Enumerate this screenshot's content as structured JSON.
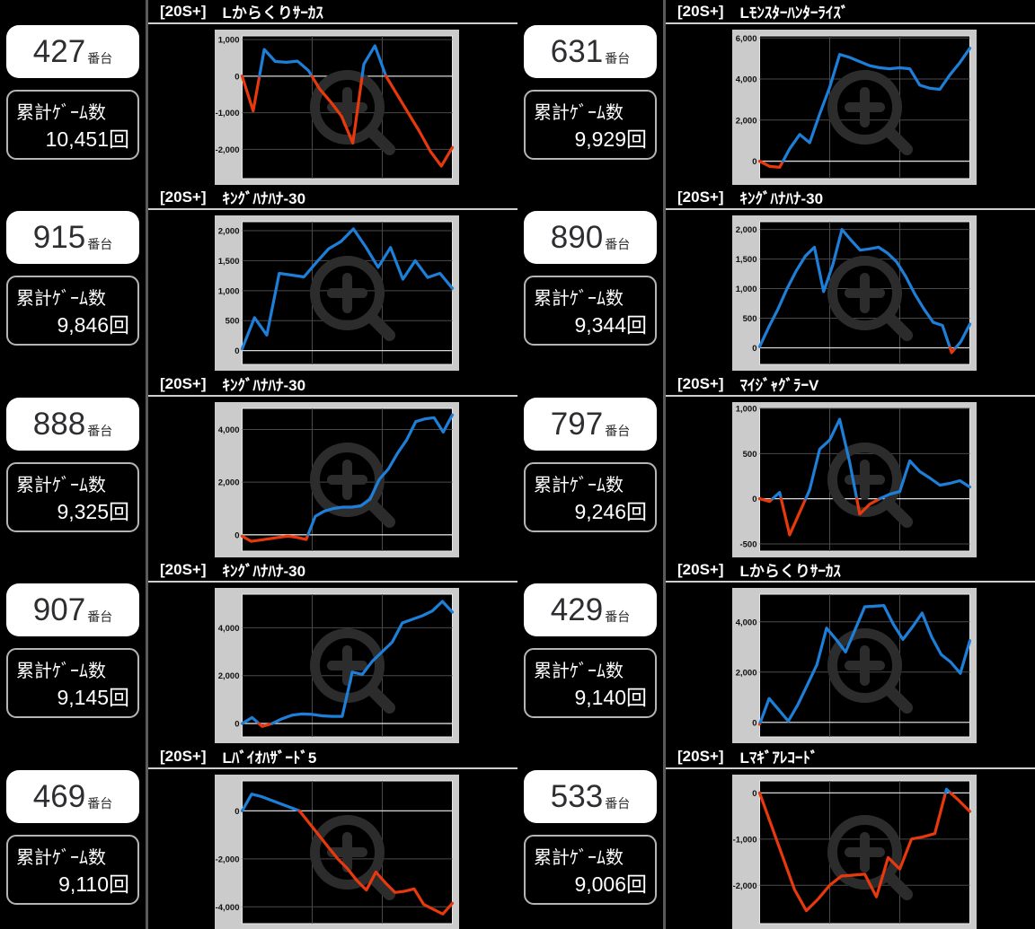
{
  "page": {
    "background": "#000000"
  },
  "labels": {
    "tag": "[20S+]",
    "games_label": "累計ｹﾞｰﾑ数",
    "machine_unit": "番台",
    "games_unit": "回"
  },
  "colors": {
    "line_positive": "#1d7fd8",
    "line_negative": "#e8380d",
    "grid": "#4a4a4a",
    "zero_line": "#d8d8d8",
    "frame": "#cbcbcb",
    "plot_bg": "#000000",
    "plot_border": "#e8e8e8",
    "tick_text": "#111111",
    "watermark": "#2c2c2c",
    "divider": "#5a5a5a",
    "title_underline": "#cfcfcf"
  },
  "icons": {
    "watermark": "magnifier-zoom-in-icon"
  },
  "chart_data": {
    "type": "line",
    "note": "slump graphs; per-machine series in machines[].chart"
  },
  "machines": [
    {
      "number": "427",
      "games": "10,451",
      "title": "Lからくりｻｰｶｽ",
      "chart": {
        "ymax": 1100,
        "ymin": -2800,
        "yticks": [
          {
            "v": 1000,
            "label": "1,000"
          },
          {
            "v": 0,
            "label": "0"
          },
          {
            "v": -1000,
            "label": "-1,000"
          },
          {
            "v": -2000,
            "label": "-2,000"
          }
        ],
        "values": [
          0,
          -950,
          730,
          400,
          380,
          410,
          150,
          -350,
          -700,
          -1100,
          -1830,
          330,
          830,
          0,
          -500,
          -1000,
          -1500,
          -2050,
          -2460,
          -1950
        ]
      }
    },
    {
      "number": "915",
      "games": "9,846",
      "title": "ｷﾝｸﾞﾊﾅﾊﾅ-30",
      "chart": {
        "ymax": 2150,
        "ymin": -230,
        "yticks": [
          {
            "v": 2000,
            "label": "2,000"
          },
          {
            "v": 1500,
            "label": "1,500"
          },
          {
            "v": 1000,
            "label": "1,000"
          },
          {
            "v": 500,
            "label": "500"
          },
          {
            "v": 0,
            "label": "0"
          }
        ],
        "values": [
          30,
          550,
          260,
          1290,
          1260,
          1230,
          1470,
          1700,
          1820,
          2030,
          1730,
          1390,
          1720,
          1190,
          1500,
          1220,
          1290,
          1040
        ]
      }
    },
    {
      "number": "888",
      "games": "9,325",
      "title": "ｷﾝｸﾞﾊﾅﾊﾅ-30",
      "chart": {
        "ymax": 4800,
        "ymin": -620,
        "yticks": [
          {
            "v": 4000,
            "label": "4,000"
          },
          {
            "v": 2000,
            "label": "2,000"
          },
          {
            "v": 0,
            "label": "0"
          }
        ],
        "values": [
          -50,
          -250,
          -200,
          -150,
          -100,
          -50,
          -100,
          -180,
          700,
          900,
          1000,
          1050,
          1050,
          1100,
          1350,
          2100,
          2500,
          3100,
          3600,
          4300,
          4400,
          4450,
          3900,
          4550
        ]
      }
    },
    {
      "number": "907",
      "games": "9,145",
      "title": "ｷﾝｸﾞﾊﾅﾊﾅ-30",
      "chart": {
        "ymax": 5400,
        "ymin": -560,
        "yticks": [
          {
            "v": 4000,
            "label": "4,000"
          },
          {
            "v": 2000,
            "label": "2,000"
          },
          {
            "v": 0,
            "label": "0"
          }
        ],
        "values": [
          0,
          250,
          -120,
          0,
          200,
          350,
          400,
          380,
          320,
          300,
          300,
          2150,
          2050,
          2600,
          3000,
          3400,
          4200,
          4350,
          4500,
          4700,
          5100,
          4650
        ]
      }
    },
    {
      "number": "469",
      "games": "9,110",
      "title": "Lﾊﾞｲｵﾊｻﾞｰﾄﾞ5",
      "chart": {
        "ymax": 1250,
        "ymin": -4700,
        "yticks": [
          {
            "v": 0,
            "label": "0"
          },
          {
            "v": -2000,
            "label": "-2,000"
          },
          {
            "v": -4000,
            "label": "-4,000"
          }
        ],
        "values": [
          0,
          700,
          600,
          450,
          300,
          150,
          0,
          -500,
          -1000,
          -1500,
          -2000,
          -2400,
          -2900,
          -3300,
          -2550,
          -3000,
          -3400,
          -3350,
          -3250,
          -3900,
          -4100,
          -4300,
          -3850
        ]
      }
    },
    {
      "number": "631",
      "games": "9,929",
      "title": "Lﾓﾝｽﾀｰﾊﾝﾀｰﾗｲｽﾞ",
      "chart": {
        "ymax": 6100,
        "ymin": -850,
        "yticks": [
          {
            "v": 6000,
            "label": "6,000"
          },
          {
            "v": 4000,
            "label": "4,000"
          },
          {
            "v": 2000,
            "label": "2,000"
          },
          {
            "v": 0,
            "label": "0"
          }
        ],
        "values": [
          0,
          -250,
          -300,
          600,
          1300,
          900,
          2300,
          3600,
          5200,
          5050,
          4850,
          4650,
          4550,
          4500,
          4550,
          4500,
          3700,
          3550,
          3500,
          4200,
          4800,
          5500
        ]
      }
    },
    {
      "number": "890",
      "games": "9,344",
      "title": "ｷﾝｸﾞﾊﾅﾊﾅ-30",
      "chart": {
        "ymax": 2130,
        "ymin": -280,
        "yticks": [
          {
            "v": 2000,
            "label": "2,000"
          },
          {
            "v": 1500,
            "label": "1,500"
          },
          {
            "v": 1000,
            "label": "1,000"
          },
          {
            "v": 500,
            "label": "500"
          },
          {
            "v": 0,
            "label": "0"
          }
        ],
        "values": [
          20,
          350,
          650,
          1000,
          1300,
          1550,
          1700,
          950,
          1400,
          2000,
          1820,
          1650,
          1670,
          1700,
          1600,
          1450,
          1200,
          900,
          650,
          430,
          380,
          -80,
          100,
          400
        ]
      }
    },
    {
      "number": "797",
      "games": "9,246",
      "title": "ﾏｲｼﾞｬｸﾞﾗｰV",
      "chart": {
        "ymax": 1000,
        "ymin": -580,
        "yticks": [
          {
            "v": 1000,
            "label": "1,000"
          },
          {
            "v": 500,
            "label": "500"
          },
          {
            "v": 0,
            "label": "0"
          },
          {
            "v": -500,
            "label": "-500"
          }
        ],
        "values": [
          0,
          -30,
          70,
          -400,
          -150,
          100,
          550,
          650,
          880,
          400,
          -170,
          -60,
          0,
          50,
          80,
          420,
          300,
          230,
          150,
          170,
          200,
          130
        ]
      }
    },
    {
      "number": "429",
      "games": "9,140",
      "title": "Lからくりｻｰｶｽ",
      "chart": {
        "ymax": 5100,
        "ymin": -580,
        "yticks": [
          {
            "v": 4000,
            "label": "4,000"
          },
          {
            "v": 2000,
            "label": "2,000"
          },
          {
            "v": 0,
            "label": "0"
          }
        ],
        "values": [
          -80,
          950,
          500,
          50,
          700,
          1500,
          2300,
          3750,
          3300,
          2800,
          3700,
          4600,
          4620,
          4650,
          3900,
          3300,
          3800,
          4350,
          3400,
          2700,
          2400,
          1950,
          3250
        ]
      }
    },
    {
      "number": "533",
      "games": "9,006",
      "title": "Lﾏｷﾞｱﾚｺｰﾄﾞ",
      "chart": {
        "ymax": 260,
        "ymin": -2830,
        "yticks": [
          {
            "v": 0,
            "label": "0"
          },
          {
            "v": -1000,
            "label": "-1,000"
          },
          {
            "v": -2000,
            "label": "-2,000"
          }
        ],
        "values": [
          0,
          -700,
          -1400,
          -2100,
          -2550,
          -2300,
          -2000,
          -1800,
          -1780,
          -1760,
          -2250,
          -1400,
          -1650,
          -1000,
          -950,
          -880,
          80,
          -150,
          -400
        ]
      }
    }
  ]
}
